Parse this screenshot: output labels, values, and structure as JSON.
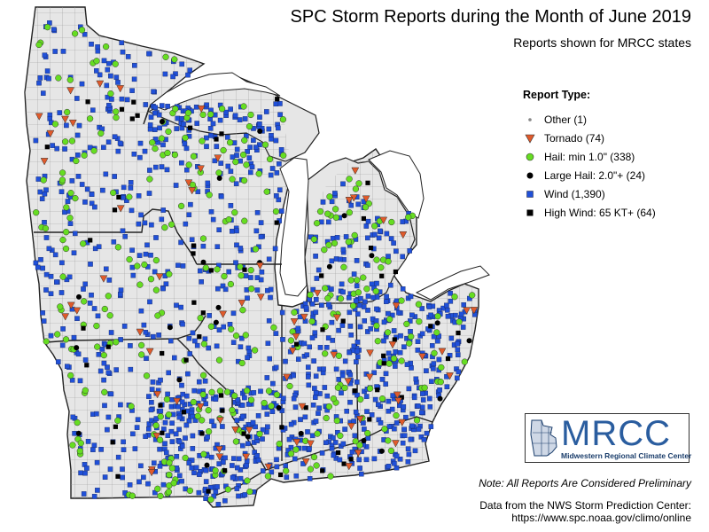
{
  "title": "SPC Storm Reports during the Month of June 2019",
  "subtitle": "Reports shown for MRCC states",
  "legend": {
    "title": "Report Type:",
    "items": [
      {
        "label": "Other (1)",
        "shape": "dot-small",
        "color": "#888888"
      },
      {
        "label": "Tornado (74)",
        "shape": "triangle-down",
        "color": "#e05a2b"
      },
      {
        "label": "Hail: min 1.0\" (338)",
        "shape": "circle",
        "color": "#66dd22"
      },
      {
        "label": "Large Hail: 2.0\"+ (24)",
        "shape": "circle",
        "color": "#000000"
      },
      {
        "label": "Wind (1,390)",
        "shape": "square",
        "color": "#2050d8"
      },
      {
        "label": "High Wind: 65 KT+ (64)",
        "shape": "square",
        "color": "#000000"
      }
    ]
  },
  "logo": {
    "name": "MRCC",
    "tagline": "Midwestern Regional Climate Center"
  },
  "note": "Note: All Reports Are Considered Preliminary",
  "source": {
    "line1": "Data from the NWS Storm Prediction Center:",
    "line2": "https://www.spc.noaa.gov/climo/online"
  },
  "colors": {
    "land": "#e6e6e6",
    "water": "#ffffff",
    "county_border": "#9a9a9a",
    "state_border": "#222222",
    "wind": "#2050d8",
    "hail": "#66dd22",
    "tornado": "#e05a2b"
  }
}
